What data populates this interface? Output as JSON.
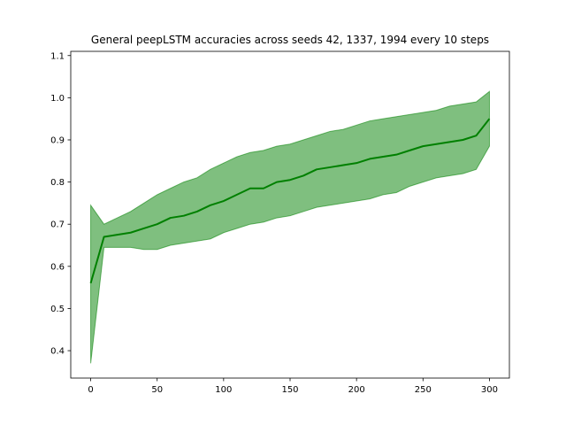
{
  "chart_data": {
    "type": "line",
    "title": "General peepLSTM accuracies across seeds 42, 1337, 1994 every 10 steps",
    "xlabel": "",
    "ylabel": "",
    "xlim": [
      -15,
      315
    ],
    "ylim": [
      0.335,
      1.11
    ],
    "xticks": [
      0,
      50,
      100,
      150,
      200,
      250,
      300
    ],
    "xtick_labels": [
      "0",
      "50",
      "100",
      "150",
      "200",
      "250",
      "300"
    ],
    "yticks": [
      0.4,
      0.5,
      0.6,
      0.7,
      0.8,
      0.9,
      1.0,
      1.1
    ],
    "ytick_labels": [
      "0.4",
      "0.5",
      "0.6",
      "0.7",
      "0.8",
      "0.9",
      "1.0",
      "1.1"
    ],
    "grid": false,
    "legend": "none",
    "colors": {
      "line": "#008000",
      "band_fill": "#008000",
      "band_fill_opacity": 0.5
    },
    "x": [
      0,
      10,
      20,
      30,
      40,
      50,
      60,
      70,
      80,
      90,
      100,
      110,
      120,
      130,
      140,
      150,
      160,
      170,
      180,
      190,
      200,
      210,
      220,
      230,
      240,
      250,
      260,
      270,
      280,
      290,
      300
    ],
    "series": [
      {
        "role": "mean",
        "values": [
          0.56,
          0.67,
          0.675,
          0.68,
          0.69,
          0.7,
          0.715,
          0.72,
          0.73,
          0.745,
          0.755,
          0.77,
          0.785,
          0.785,
          0.8,
          0.805,
          0.815,
          0.83,
          0.835,
          0.84,
          0.845,
          0.855,
          0.86,
          0.865,
          0.875,
          0.885,
          0.89,
          0.895,
          0.9,
          0.91,
          0.95
        ]
      },
      {
        "role": "lower",
        "values": [
          0.37,
          0.645,
          0.645,
          0.645,
          0.64,
          0.64,
          0.65,
          0.655,
          0.66,
          0.665,
          0.68,
          0.69,
          0.7,
          0.705,
          0.715,
          0.72,
          0.73,
          0.74,
          0.745,
          0.75,
          0.755,
          0.76,
          0.77,
          0.775,
          0.79,
          0.8,
          0.81,
          0.815,
          0.82,
          0.83,
          0.885
        ]
      },
      {
        "role": "upper",
        "values": [
          0.745,
          0.7,
          0.715,
          0.73,
          0.75,
          0.77,
          0.785,
          0.8,
          0.81,
          0.83,
          0.845,
          0.86,
          0.87,
          0.875,
          0.885,
          0.89,
          0.9,
          0.91,
          0.92,
          0.925,
          0.935,
          0.945,
          0.95,
          0.955,
          0.96,
          0.965,
          0.97,
          0.98,
          0.985,
          0.99,
          1.015
        ]
      }
    ]
  }
}
